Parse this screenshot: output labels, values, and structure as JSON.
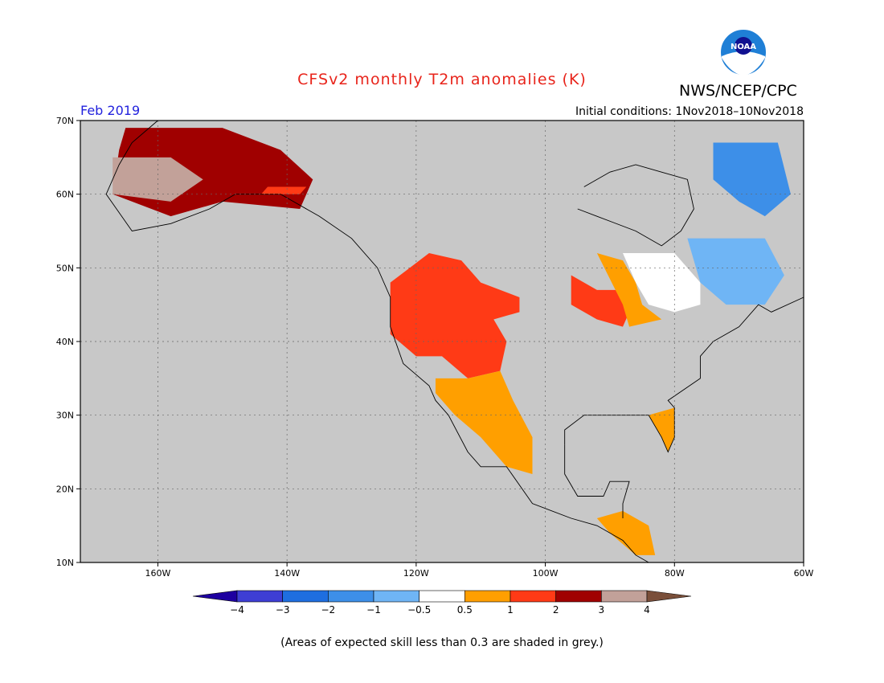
{
  "header": {
    "title": "CFSv2 monthly T2m anomalies (K)",
    "agency": "NWS/NCEP/CPC",
    "logo_text": "NOAA",
    "month": "Feb 2019",
    "initial_conditions": "Initial conditions: 1Nov2018–10Nov2018"
  },
  "map": {
    "lon_range": [
      -172,
      -60
    ],
    "lat_range": [
      10,
      70
    ],
    "lat_ticks": [
      {
        "value": 70,
        "label": "70N"
      },
      {
        "value": 60,
        "label": "60N"
      },
      {
        "value": 50,
        "label": "50N"
      },
      {
        "value": 40,
        "label": "40N"
      },
      {
        "value": 30,
        "label": "30N"
      },
      {
        "value": 20,
        "label": "20N"
      },
      {
        "value": 10,
        "label": "10N"
      }
    ],
    "lon_ticks": [
      {
        "value": -160,
        "label": "160W"
      },
      {
        "value": -140,
        "label": "140W"
      },
      {
        "value": -120,
        "label": "120W"
      },
      {
        "value": -100,
        "label": "100W"
      },
      {
        "value": -80,
        "label": "80W"
      },
      {
        "value": -60,
        "label": "60W"
      }
    ],
    "background_color": "#c8c8c8",
    "grid": true,
    "anomaly_regions": [
      {
        "name": "alaska-warm",
        "level": "2 to 3",
        "color": "#a00000",
        "polygon": [
          [
            -165,
            69
          ],
          [
            -150,
            69
          ],
          [
            -141,
            66
          ],
          [
            -136,
            62
          ],
          [
            -138,
            58
          ],
          [
            -150,
            59
          ],
          [
            -158,
            57
          ],
          [
            -167,
            60
          ],
          [
            -166,
            66
          ]
        ]
      },
      {
        "name": "alaska-very-warm",
        "level": "3 to 4",
        "color": "#c2a199",
        "polygon": [
          [
            -167,
            65
          ],
          [
            -158,
            65
          ],
          [
            -153,
            62
          ],
          [
            -158,
            59
          ],
          [
            -167,
            60
          ]
        ]
      },
      {
        "name": "alaska-edge",
        "level": "1 to 2",
        "color": "#ff3a16",
        "polygon": [
          [
            -144,
            60
          ],
          [
            -138,
            60
          ],
          [
            -137,
            61
          ],
          [
            -143,
            61
          ]
        ]
      },
      {
        "name": "pacific-northwest-west",
        "level": "1 to 2",
        "color": "#ff3a16",
        "polygon": [
          [
            -124,
            48
          ],
          [
            -118,
            52
          ],
          [
            -113,
            51
          ],
          [
            -110,
            48
          ],
          [
            -104,
            46
          ],
          [
            -104,
            44
          ],
          [
            -108,
            43
          ],
          [
            -106,
            40
          ],
          [
            -107,
            36
          ],
          [
            -112,
            35
          ],
          [
            -116,
            38
          ],
          [
            -120,
            38
          ],
          [
            -124,
            41
          ]
        ]
      },
      {
        "name": "southwest-warm",
        "level": "0.5 to 1",
        "color": "#ff9f00",
        "polygon": [
          [
            -117,
            35
          ],
          [
            -112,
            35
          ],
          [
            -107,
            36
          ],
          [
            -105,
            32
          ],
          [
            -102,
            27
          ],
          [
            -102,
            22
          ],
          [
            -106,
            23
          ],
          [
            -110,
            27
          ],
          [
            -114,
            30
          ],
          [
            -117,
            33
          ]
        ]
      },
      {
        "name": "upper-midwest",
        "level": "1 to 2",
        "color": "#ff3a16",
        "polygon": [
          [
            -96,
            49
          ],
          [
            -92,
            47
          ],
          [
            -89,
            47
          ],
          [
            -87,
            44
          ],
          [
            -88,
            42
          ],
          [
            -92,
            43
          ],
          [
            -96,
            45
          ]
        ]
      },
      {
        "name": "great-lakes-edge",
        "level": "0.5 to 1",
        "color": "#ff9f00",
        "polygon": [
          [
            -92,
            52
          ],
          [
            -88,
            51
          ],
          [
            -86,
            48
          ],
          [
            -85,
            45
          ],
          [
            -82,
            43
          ],
          [
            -87,
            42
          ],
          [
            -88,
            45
          ]
        ]
      },
      {
        "name": "ontario-neutral",
        "level": "-0.5 to 0.5",
        "color": "#ffffff",
        "polygon": [
          [
            -88,
            52
          ],
          [
            -80,
            52
          ],
          [
            -76,
            48
          ],
          [
            -76,
            45
          ],
          [
            -80,
            44
          ],
          [
            -84,
            45
          ],
          [
            -86,
            48
          ]
        ]
      },
      {
        "name": "florida-warm",
        "level": "0.5 to 1",
        "color": "#ff9f00",
        "polygon": [
          [
            -84,
            30
          ],
          [
            -80,
            31
          ],
          [
            -80,
            27
          ],
          [
            -81,
            25
          ],
          [
            -82,
            27
          ]
        ]
      },
      {
        "name": "central-america-warm",
        "level": "0.5 to 1",
        "color": "#ff9f00",
        "polygon": [
          [
            -92,
            16
          ],
          [
            -88,
            17
          ],
          [
            -84,
            15
          ],
          [
            -83,
            11
          ],
          [
            -86,
            11
          ],
          [
            -90,
            14
          ]
        ]
      },
      {
        "name": "quebec-cold",
        "level": "-1 to -0.5",
        "color": "#6fb5f5",
        "polygon": [
          [
            -78,
            54
          ],
          [
            -66,
            54
          ],
          [
            -63,
            49
          ],
          [
            -66,
            45
          ],
          [
            -72,
            45
          ],
          [
            -76,
            48
          ]
        ]
      },
      {
        "name": "labrador-cold",
        "level": "-2 to -1",
        "color": "#3d8fe8",
        "polygon": [
          [
            -74,
            67
          ],
          [
            -64,
            67
          ],
          [
            -62,
            60
          ],
          [
            -66,
            57
          ],
          [
            -70,
            59
          ],
          [
            -74,
            62
          ]
        ]
      }
    ],
    "coast_paths": [
      {
        "name": "alaska-coast",
        "points": [
          [
            -141,
            60
          ],
          [
            -148,
            60
          ],
          [
            -152,
            58
          ],
          [
            -158,
            56
          ],
          [
            -164,
            55
          ],
          [
            -168,
            60
          ],
          [
            -166,
            64
          ],
          [
            -164,
            67
          ],
          [
            -160,
            70
          ],
          [
            -141,
            70
          ]
        ]
      },
      {
        "name": "west-coast",
        "points": [
          [
            -141,
            60
          ],
          [
            -135,
            57
          ],
          [
            -130,
            54
          ],
          [
            -126,
            50
          ],
          [
            -124,
            46
          ],
          [
            -124,
            42
          ],
          [
            -122,
            37
          ],
          [
            -118,
            34
          ],
          [
            -117,
            32
          ],
          [
            -115,
            30
          ],
          [
            -112,
            25
          ],
          [
            -110,
            23
          ],
          [
            -106,
            23
          ],
          [
            -102,
            18
          ],
          [
            -96,
            16
          ],
          [
            -92,
            15
          ],
          [
            -88,
            13
          ],
          [
            -86,
            11
          ],
          [
            -84,
            10
          ]
        ]
      },
      {
        "name": "gulf-coast",
        "points": [
          [
            -97,
            26
          ],
          [
            -97,
            28
          ],
          [
            -94,
            30
          ],
          [
            -90,
            30
          ],
          [
            -88,
            30
          ],
          [
            -84,
            30
          ],
          [
            -82,
            27
          ],
          [
            -81,
            25
          ],
          [
            -80,
            27
          ],
          [
            -80,
            31
          ],
          [
            -81,
            32
          ],
          [
            -76,
            35
          ],
          [
            -76,
            38
          ],
          [
            -74,
            40
          ],
          [
            -70,
            42
          ],
          [
            -67,
            45
          ],
          [
            -65,
            44
          ],
          [
            -60,
            46
          ]
        ]
      },
      {
        "name": "hudson-bay",
        "points": [
          [
            -95,
            58
          ],
          [
            -92,
            57
          ],
          [
            -86,
            55
          ],
          [
            -82,
            53
          ],
          [
            -79,
            55
          ],
          [
            -77,
            58
          ],
          [
            -78,
            62
          ],
          [
            -82,
            63
          ],
          [
            -86,
            64
          ],
          [
            -90,
            63
          ],
          [
            -94,
            61
          ]
        ]
      },
      {
        "name": "yucatan",
        "points": [
          [
            -97,
            26
          ],
          [
            -97,
            22
          ],
          [
            -95,
            19
          ],
          [
            -91,
            19
          ],
          [
            -90,
            21
          ],
          [
            -87,
            21
          ],
          [
            -88,
            18
          ],
          [
            -88,
            16
          ]
        ]
      }
    ]
  },
  "colorbar": {
    "colors": [
      "#1e00a0",
      "#3e3ed4",
      "#1e6ee0",
      "#3d8fe8",
      "#6fb5f5",
      "#ffffff",
      "#ff9f00",
      "#ff3a16",
      "#a00000",
      "#c2a199",
      "#7a4f3a"
    ],
    "labels": [
      "−4",
      "−3",
      "−2",
      "−1",
      "−0.5",
      "0.5",
      "1",
      "2",
      "3",
      "4"
    ]
  },
  "footnote": "(Areas of expected skill less than 0.3 are shaded in grey.)"
}
